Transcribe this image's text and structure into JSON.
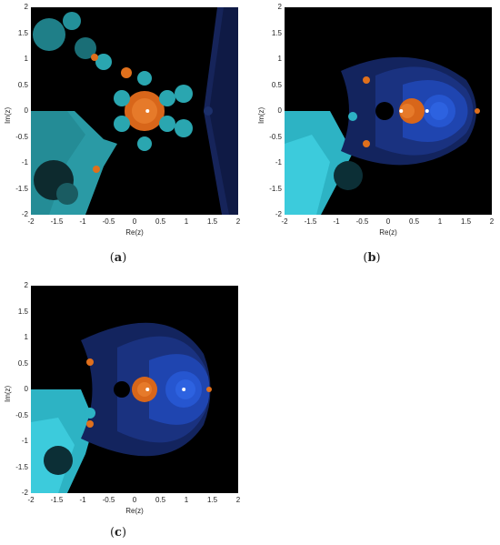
{
  "panels": [
    {
      "id": "a",
      "caption_letter": "a",
      "xlabel": "Re(z)",
      "ylabel": "Im(z)",
      "x_ticks": [
        "-2",
        "-1.5",
        "-1",
        "-0.5",
        "0",
        "0.5",
        "1",
        "1.5",
        "2"
      ],
      "y_ticks": [
        "2",
        "1.5",
        "1",
        "0.5",
        "0",
        "-0.5",
        "-1",
        "-1.5",
        "-2"
      ],
      "xlim": [
        -2,
        2
      ],
      "ylim": [
        -2,
        2
      ],
      "roots": [
        {
          "re": 0.25,
          "im": 0,
          "color": "#ffffff"
        }
      ],
      "basin_colors": {
        "orange": "#e0701c",
        "cyan": "#2aa6b0",
        "blue": "#1c2f6a",
        "background": "#000000"
      }
    },
    {
      "id": "b",
      "caption_letter": "b",
      "xlabel": "Re(z)",
      "ylabel": "Im(z)",
      "x_ticks": [
        "-2",
        "-1.5",
        "-1",
        "-0.5",
        "0",
        "0.5",
        "1",
        "1.5",
        "2"
      ],
      "y_ticks": [
        "2",
        "1.5",
        "1",
        "0.5",
        "0",
        "-0.5",
        "-1",
        "-1.5",
        "-2"
      ],
      "xlim": [
        -2,
        2
      ],
      "ylim": [
        -2,
        2
      ],
      "roots": [
        {
          "re": 0.25,
          "im": 0,
          "color": "#ffffff"
        },
        {
          "re": 0.75,
          "im": 0,
          "color": "#ffffff"
        }
      ],
      "basin_colors": {
        "orange": "#e0701c",
        "cyan": "#38c8d8",
        "blue": "#1f4bc0",
        "background": "#000000"
      }
    },
    {
      "id": "c",
      "caption_letter": "c",
      "xlabel": "Re(z)",
      "ylabel": "Im(z)",
      "x_ticks": [
        "-2",
        "-1.5",
        "-1",
        "-0.5",
        "0",
        "0.5",
        "1",
        "1.5",
        "2"
      ],
      "y_ticks": [
        "2",
        "1.5",
        "1",
        "0.5",
        "0",
        "-0.5",
        "-1",
        "-1.5",
        "-2"
      ],
      "xlim": [
        -2,
        2
      ],
      "ylim": [
        -2,
        2
      ],
      "roots": [
        {
          "re": 0.25,
          "im": 0,
          "color": "#ffffff"
        },
        {
          "re": 0.95,
          "im": 0,
          "color": "#ffffff"
        }
      ],
      "basin_colors": {
        "orange": "#e0701c",
        "cyan": "#38c8d8",
        "blue": "#1f4bc0",
        "background": "#000000"
      }
    }
  ]
}
